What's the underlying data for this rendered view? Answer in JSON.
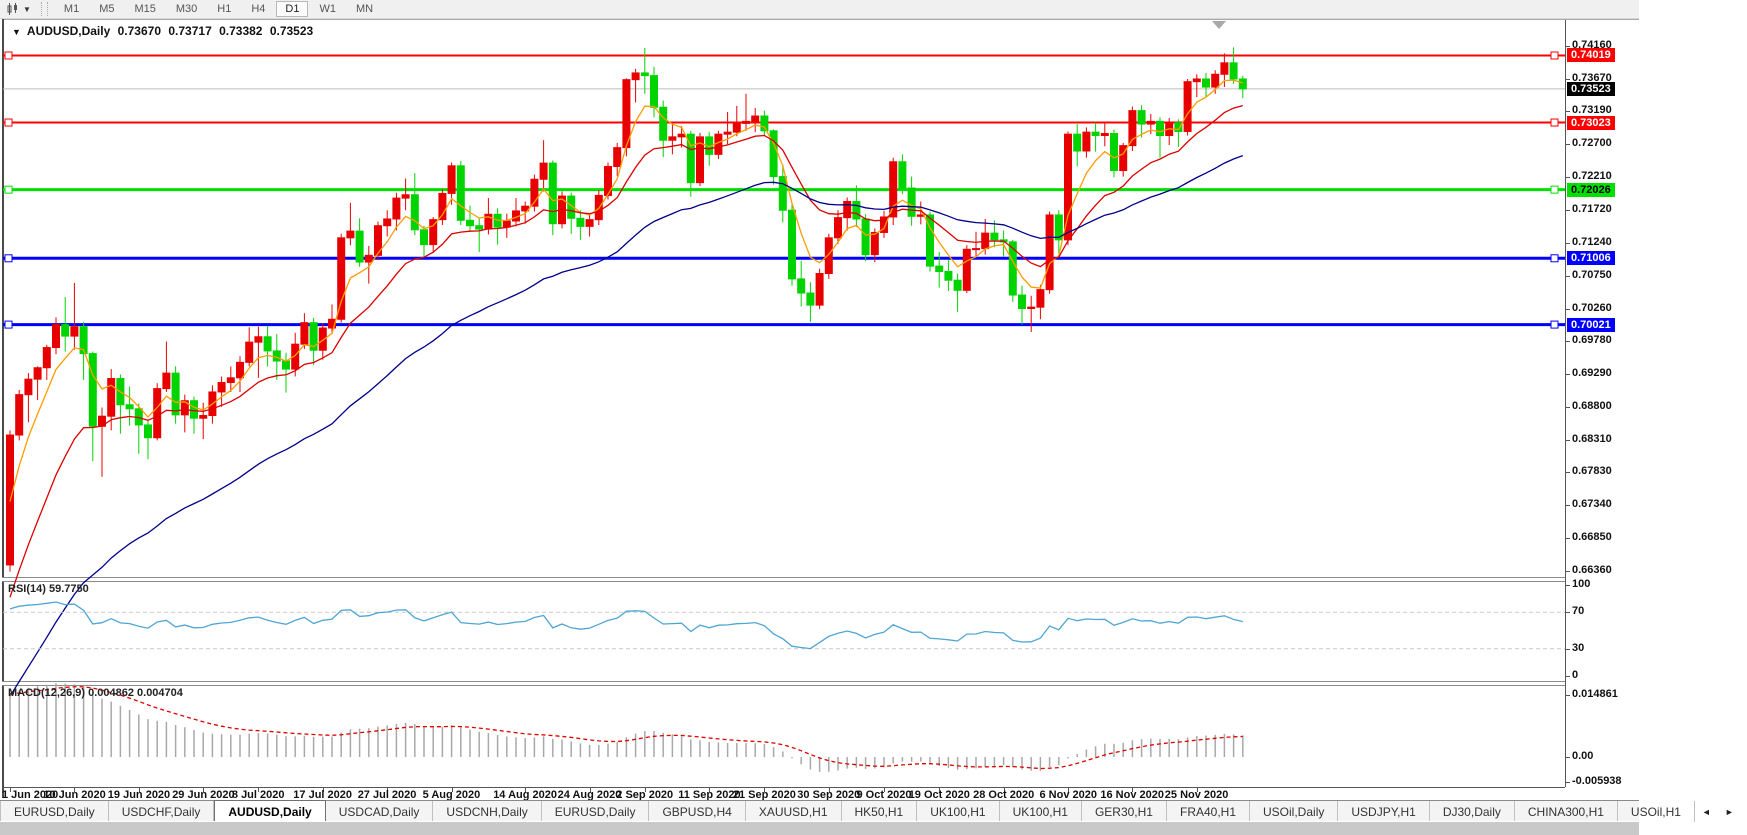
{
  "toolbar": {
    "chart_icon": "candlestick-chart-icon",
    "dropdown": "▼",
    "timeframes": [
      "M1",
      "M5",
      "M15",
      "M30",
      "H1",
      "H4",
      "D1",
      "W1",
      "MN"
    ],
    "active_timeframe": "D1"
  },
  "chart_header": {
    "dropdown": "▼",
    "symbol": "AUDUSD,Daily",
    "open": "0.73670",
    "high": "0.73717",
    "low": "0.73382",
    "close": "0.73523"
  },
  "rsi_panel": {
    "label": "RSI(14) 59.7750"
  },
  "macd_panel": {
    "label": "MACD(12,26,9) 0.004862 0.004704"
  },
  "tabs": {
    "scroll_left": "◄",
    "scroll_right": "►",
    "items": [
      {
        "label": "EURUSD,Daily",
        "active": false
      },
      {
        "label": "USDCHF,Daily",
        "active": false
      },
      {
        "label": "AUDUSD,Daily",
        "active": true
      },
      {
        "label": "USDCAD,Daily",
        "active": false
      },
      {
        "label": "USDCNH,Daily",
        "active": false
      },
      {
        "label": "EURUSD,Daily",
        "active": false
      },
      {
        "label": "GBPUSD,H4",
        "active": false
      },
      {
        "label": "XAUUSD,H1",
        "active": false
      },
      {
        "label": "HK50,H1",
        "active": false
      },
      {
        "label": "UK100,H1",
        "active": false
      },
      {
        "label": "UK100,H1",
        "active": false
      },
      {
        "label": "GER30,H1",
        "active": false
      },
      {
        "label": "FRA40,H1",
        "active": false
      },
      {
        "label": "USOil,Daily",
        "active": false
      },
      {
        "label": "USDJPY,H1",
        "active": false
      },
      {
        "label": "DJ30,Daily",
        "active": false
      },
      {
        "label": "CHINA300,H1",
        "active": false
      },
      {
        "label": "USOil,H1",
        "active": false
      }
    ]
  },
  "chart_data": {
    "type": "candlestick",
    "symbol": "AUDUSD",
    "timeframe": "Daily",
    "up_color": "#e80000",
    "down_color": "#00d400",
    "price_axis_ticks": [
      "0.74160",
      "0.73670",
      "0.73190",
      "0.72700",
      "0.72210",
      "0.71720",
      "0.71240",
      "0.70750",
      "0.70260",
      "0.69780",
      "0.69290",
      "0.68800",
      "0.68310",
      "0.67830",
      "0.67340",
      "0.66850",
      "0.66360"
    ],
    "time_axis_ticks": [
      {
        "label": "1 Jun 2020",
        "i": 0
      },
      {
        "label": "10 Jun 2020",
        "i": 7
      },
      {
        "label": "19 Jun 2020",
        "i": 14
      },
      {
        "label": "29 Jun 2020",
        "i": 21
      },
      {
        "label": "8 Jul 2020",
        "i": 27
      },
      {
        "label": "17 Jul 2020",
        "i": 34
      },
      {
        "label": "27 Jul 2020",
        "i": 41
      },
      {
        "label": "5 Aug 2020",
        "i": 48
      },
      {
        "label": "14 Aug 2020",
        "i": 56
      },
      {
        "label": "24 Aug 2020",
        "i": 63
      },
      {
        "label": "2 Sep 2020",
        "i": 69
      },
      {
        "label": "11 Sep 2020",
        "i": 76
      },
      {
        "label": "21 Sep 2020",
        "i": 82
      },
      {
        "label": "30 Sep 2020",
        "i": 89
      },
      {
        "label": "9 Oct 2020",
        "i": 95
      },
      {
        "label": "19 Oct 2020",
        "i": 101
      },
      {
        "label": "28 Oct 2020",
        "i": 108
      },
      {
        "label": "6 Nov 2020",
        "i": 115
      },
      {
        "label": "16 Nov 2020",
        "i": 122
      },
      {
        "label": "25 Nov 2020",
        "i": 129
      }
    ],
    "levels": [
      {
        "price": 0.74019,
        "label": "0.74019",
        "color": "#ff0000",
        "text_color": "#ffffff",
        "width": 2
      },
      {
        "price": 0.73023,
        "label": "0.73023",
        "color": "#ff0000",
        "text_color": "#ffffff",
        "width": 2
      },
      {
        "price": 0.72026,
        "label": "0.72026",
        "color": "#00e000",
        "text_color": "#000000",
        "width": 3
      },
      {
        "price": 0.71006,
        "label": "0.71006",
        "color": "#0000ff",
        "text_color": "#ffffff",
        "width": 3
      },
      {
        "price": 0.70021,
        "label": "0.70021",
        "color": "#0000ff",
        "text_color": "#ffffff",
        "width": 3
      }
    ],
    "current_price": {
      "price": 0.73523,
      "label": "0.73523",
      "line_color": "#bcbcbc",
      "badge_color": "#000000",
      "text_color": "#ffffff"
    },
    "moving_averages": [
      {
        "name": "ma-fast",
        "period": 5,
        "seed": 0.669,
        "color": "#ff9c00"
      },
      {
        "name": "ma-medium",
        "period": 14,
        "seed": 0.656,
        "color": "#dd0000"
      },
      {
        "name": "ma-slow",
        "period": 40,
        "seed": 0.643,
        "color": "#00008b"
      }
    ],
    "rsi": {
      "period": 14,
      "seed_gain": 0.0028,
      "seed_loss": 0.001,
      "color": "#4fa6d5",
      "level_lines": [
        70,
        30
      ],
      "axis_ticks": [
        {
          "label": "100",
          "v": 100
        },
        {
          "label": "70",
          "v": 70
        },
        {
          "label": "30",
          "v": 30
        },
        {
          "label": "0",
          "v": 0
        }
      ]
    },
    "macd": {
      "fast": 12,
      "slow": 26,
      "signal": 9,
      "seed_fast": 0.664,
      "seed_slow": 0.6492,
      "seed_signal": 0.015,
      "bar_color": "#a8a8a8",
      "signal_color": "#dd0000",
      "axis_ticks": [
        {
          "label": "0.014861",
          "v": 0.014861
        },
        {
          "label": "0.00",
          "v": 0
        },
        {
          "label": "-0.005938",
          "v": -0.005938
        }
      ]
    },
    "candles": [
      [
        0.6645,
        0.6845,
        0.6635,
        0.6838
      ],
      [
        0.6838,
        0.6905,
        0.683,
        0.6898
      ],
      [
        0.6898,
        0.693,
        0.6857,
        0.6921
      ],
      [
        0.6921,
        0.694,
        0.689,
        0.6938
      ],
      [
        0.6938,
        0.6972,
        0.692,
        0.6968
      ],
      [
        0.6968,
        0.7013,
        0.6958,
        0.7002
      ],
      [
        0.7002,
        0.7043,
        0.6962,
        0.6985
      ],
      [
        0.6985,
        0.7064,
        0.6965,
        0.6999
      ],
      [
        0.6999,
        0.7006,
        0.692,
        0.6959
      ],
      [
        0.6959,
        0.6962,
        0.6799,
        0.6851
      ],
      [
        0.6851,
        0.6879,
        0.6776,
        0.6866
      ],
      [
        0.6866,
        0.6936,
        0.6845,
        0.6922
      ],
      [
        0.6922,
        0.6928,
        0.684,
        0.6883
      ],
      [
        0.6883,
        0.691,
        0.6852,
        0.6877
      ],
      [
        0.6877,
        0.6885,
        0.681,
        0.6853
      ],
      [
        0.6853,
        0.686,
        0.6802,
        0.6834
      ],
      [
        0.6834,
        0.6915,
        0.683,
        0.6907
      ],
      [
        0.6907,
        0.6977,
        0.6902,
        0.693
      ],
      [
        0.693,
        0.694,
        0.6855,
        0.6868
      ],
      [
        0.6868,
        0.6898,
        0.6842,
        0.6889
      ],
      [
        0.6889,
        0.6895,
        0.684,
        0.6863
      ],
      [
        0.6863,
        0.6886,
        0.6832,
        0.6867
      ],
      [
        0.6867,
        0.6912,
        0.6855,
        0.6902
      ],
      [
        0.6902,
        0.6925,
        0.688,
        0.6916
      ],
      [
        0.6916,
        0.694,
        0.6902,
        0.6923
      ],
      [
        0.6923,
        0.6955,
        0.6902,
        0.6946
      ],
      [
        0.6946,
        0.6998,
        0.694,
        0.6976
      ],
      [
        0.6976,
        0.6999,
        0.6923,
        0.6984
      ],
      [
        0.6984,
        0.7,
        0.694,
        0.6963
      ],
      [
        0.6963,
        0.6988,
        0.692,
        0.6948
      ],
      [
        0.6948,
        0.696,
        0.6901,
        0.6936
      ],
      [
        0.6936,
        0.699,
        0.6925,
        0.6973
      ],
      [
        0.6973,
        0.7019,
        0.6966,
        0.7005
      ],
      [
        0.7005,
        0.7012,
        0.6942,
        0.6964
      ],
      [
        0.6964,
        0.7004,
        0.695,
        0.6997
      ],
      [
        0.6997,
        0.7032,
        0.6988,
        0.701
      ],
      [
        0.701,
        0.7137,
        0.7005,
        0.7131
      ],
      [
        0.7131,
        0.7183,
        0.712,
        0.7141
      ],
      [
        0.7141,
        0.716,
        0.7088,
        0.7095
      ],
      [
        0.7095,
        0.7119,
        0.7063,
        0.7105
      ],
      [
        0.7105,
        0.7155,
        0.7098,
        0.7149
      ],
      [
        0.7149,
        0.7172,
        0.7133,
        0.7159
      ],
      [
        0.7159,
        0.7198,
        0.7142,
        0.719
      ],
      [
        0.719,
        0.7219,
        0.7172,
        0.7195
      ],
      [
        0.7195,
        0.7227,
        0.7135,
        0.7143
      ],
      [
        0.7143,
        0.7149,
        0.7102,
        0.7121
      ],
      [
        0.7121,
        0.7162,
        0.711,
        0.7158
      ],
      [
        0.7158,
        0.7203,
        0.715,
        0.7197
      ],
      [
        0.7197,
        0.7243,
        0.718,
        0.7238
      ],
      [
        0.7238,
        0.7245,
        0.715,
        0.7157
      ],
      [
        0.7157,
        0.7179,
        0.714,
        0.7149
      ],
      [
        0.7149,
        0.716,
        0.711,
        0.7144
      ],
      [
        0.7144,
        0.719,
        0.7136,
        0.7166
      ],
      [
        0.7166,
        0.7175,
        0.7121,
        0.7147
      ],
      [
        0.7147,
        0.7167,
        0.7131,
        0.7156
      ],
      [
        0.7156,
        0.719,
        0.7148,
        0.7171
      ],
      [
        0.7171,
        0.7185,
        0.7152,
        0.7178
      ],
      [
        0.7178,
        0.7225,
        0.717,
        0.7218
      ],
      [
        0.7218,
        0.7276,
        0.72,
        0.7242
      ],
      [
        0.7242,
        0.7246,
        0.7135,
        0.7152
      ],
      [
        0.7152,
        0.72,
        0.7145,
        0.7193
      ],
      [
        0.7193,
        0.7198,
        0.7137,
        0.716
      ],
      [
        0.716,
        0.7172,
        0.7128,
        0.7148
      ],
      [
        0.7148,
        0.7167,
        0.7133,
        0.7158
      ],
      [
        0.7158,
        0.7202,
        0.715,
        0.7194
      ],
      [
        0.7194,
        0.7243,
        0.7188,
        0.7237
      ],
      [
        0.7237,
        0.7272,
        0.7223,
        0.7265
      ],
      [
        0.7265,
        0.7368,
        0.7252,
        0.7366
      ],
      [
        0.7366,
        0.7382,
        0.7332,
        0.7376
      ],
      [
        0.7376,
        0.7413,
        0.7345,
        0.7372
      ],
      [
        0.7372,
        0.7385,
        0.731,
        0.7325
      ],
      [
        0.7325,
        0.7335,
        0.7251,
        0.7276
      ],
      [
        0.7276,
        0.73,
        0.7255,
        0.7281
      ],
      [
        0.7281,
        0.7297,
        0.7265,
        0.7285
      ],
      [
        0.7285,
        0.729,
        0.7192,
        0.7213
      ],
      [
        0.7213,
        0.7287,
        0.7208,
        0.7281
      ],
      [
        0.7281,
        0.7288,
        0.7238,
        0.7255
      ],
      [
        0.7255,
        0.729,
        0.7248,
        0.7285
      ],
      [
        0.7285,
        0.7318,
        0.727,
        0.7288
      ],
      [
        0.7288,
        0.7327,
        0.7282,
        0.7301
      ],
      [
        0.7301,
        0.7345,
        0.729,
        0.7304
      ],
      [
        0.7304,
        0.7324,
        0.7288,
        0.7312
      ],
      [
        0.7312,
        0.732,
        0.7282,
        0.729
      ],
      [
        0.729,
        0.7292,
        0.721,
        0.7222
      ],
      [
        0.7222,
        0.724,
        0.7154,
        0.7172
      ],
      [
        0.7172,
        0.718,
        0.706,
        0.707
      ],
      [
        0.707,
        0.7097,
        0.7029,
        0.7049
      ],
      [
        0.7049,
        0.7065,
        0.7006,
        0.7031
      ],
      [
        0.7031,
        0.7085,
        0.7025,
        0.7078
      ],
      [
        0.7078,
        0.7137,
        0.707,
        0.7131
      ],
      [
        0.7131,
        0.7172,
        0.7122,
        0.7161
      ],
      [
        0.7161,
        0.7191,
        0.7142,
        0.7185
      ],
      [
        0.7185,
        0.7209,
        0.7147,
        0.7159
      ],
      [
        0.7159,
        0.7166,
        0.7096,
        0.7106
      ],
      [
        0.7106,
        0.7145,
        0.7095,
        0.7139
      ],
      [
        0.7139,
        0.7171,
        0.7131,
        0.7162
      ],
      [
        0.7162,
        0.725,
        0.715,
        0.7244
      ],
      [
        0.7244,
        0.7255,
        0.7196,
        0.7205
      ],
      [
        0.7205,
        0.7222,
        0.7149,
        0.7163
      ],
      [
        0.7163,
        0.7185,
        0.7151,
        0.7165
      ],
      [
        0.7165,
        0.717,
        0.7081,
        0.7089
      ],
      [
        0.7089,
        0.711,
        0.7057,
        0.7081
      ],
      [
        0.7081,
        0.7099,
        0.7052,
        0.7068
      ],
      [
        0.7068,
        0.7078,
        0.7021,
        0.7053
      ],
      [
        0.7053,
        0.712,
        0.7049,
        0.7114
      ],
      [
        0.7114,
        0.714,
        0.7103,
        0.7115
      ],
      [
        0.7115,
        0.7159,
        0.7106,
        0.7138
      ],
      [
        0.7138,
        0.7157,
        0.7117,
        0.7128
      ],
      [
        0.7128,
        0.7142,
        0.7103,
        0.7125
      ],
      [
        0.7125,
        0.7128,
        0.7036,
        0.7046
      ],
      [
        0.7046,
        0.706,
        0.7002,
        0.7026
      ],
      [
        0.7026,
        0.7045,
        0.6991,
        0.7028
      ],
      [
        0.7028,
        0.7061,
        0.701,
        0.7054
      ],
      [
        0.7054,
        0.717,
        0.7048,
        0.7165
      ],
      [
        0.7165,
        0.7172,
        0.7108,
        0.7128
      ],
      [
        0.7128,
        0.7289,
        0.712,
        0.7285
      ],
      [
        0.7285,
        0.73,
        0.7237,
        0.726
      ],
      [
        0.726,
        0.7295,
        0.725,
        0.7288
      ],
      [
        0.7288,
        0.7302,
        0.7259,
        0.7283
      ],
      [
        0.7283,
        0.7301,
        0.7267,
        0.7286
      ],
      [
        0.7286,
        0.7292,
        0.7221,
        0.7231
      ],
      [
        0.7231,
        0.7272,
        0.7222,
        0.7268
      ],
      [
        0.7268,
        0.7326,
        0.726,
        0.732
      ],
      [
        0.732,
        0.7328,
        0.728,
        0.73
      ],
      [
        0.73,
        0.7315,
        0.7285,
        0.7304
      ],
      [
        0.7304,
        0.731,
        0.725,
        0.7283
      ],
      [
        0.7283,
        0.7309,
        0.7269,
        0.7302
      ],
      [
        0.7302,
        0.7307,
        0.7266,
        0.7289
      ],
      [
        0.7289,
        0.7367,
        0.7283,
        0.7363
      ],
      [
        0.7363,
        0.7374,
        0.734,
        0.7367
      ],
      [
        0.7367,
        0.7376,
        0.7339,
        0.7355
      ],
      [
        0.7355,
        0.738,
        0.7345,
        0.7374
      ],
      [
        0.7374,
        0.7405,
        0.7355,
        0.7391
      ],
      [
        0.7391,
        0.7414,
        0.736,
        0.7367
      ],
      [
        0.7367,
        0.73717,
        0.73382,
        0.73523
      ]
    ]
  }
}
